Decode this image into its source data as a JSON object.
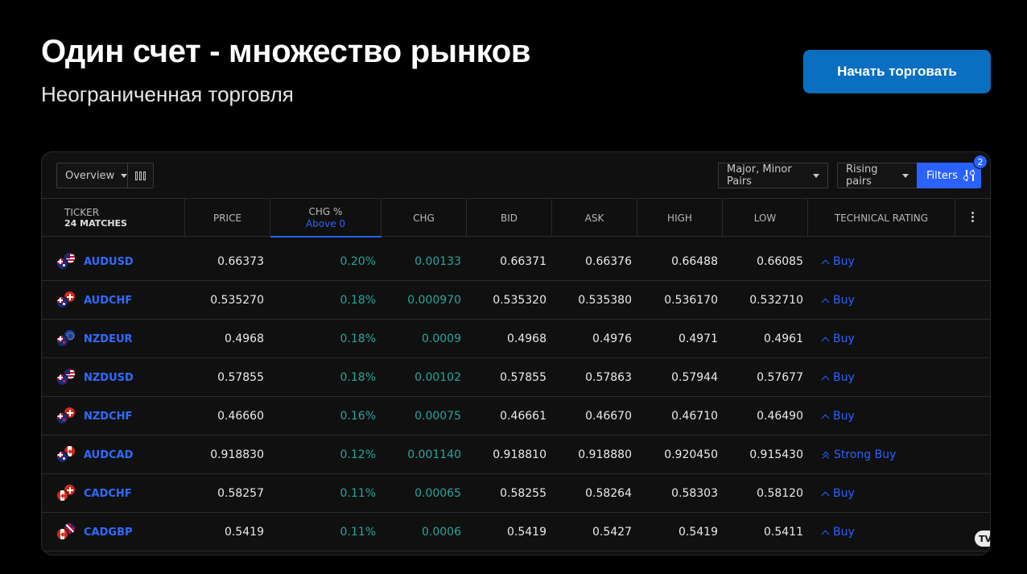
{
  "hero": {
    "title": "Один счет - множество рынков",
    "subtitle": "Неограниченная торговля",
    "cta_label": "Начать торговать"
  },
  "toolbar": {
    "view_select": "Overview",
    "pairs_select": "Major, Minor Pairs",
    "preset_select": "Rising pairs",
    "filters_label": "Filters",
    "filters_count": "2"
  },
  "table": {
    "headers": {
      "ticker": "TICKER",
      "matches": "24 MATCHES",
      "price": "PRICE",
      "chg_pct": "CHG %",
      "chg_pct_sub": "Above 0",
      "chg": "CHG",
      "bid": "BID",
      "ask": "ASK",
      "high": "HIGH",
      "low": "LOW",
      "rating": "TECHNICAL RATING"
    },
    "rows": [
      {
        "symbol": "AUDUSD",
        "flags": [
          "au",
          "us"
        ],
        "price": "0.66373",
        "chg_pct": "0.20%",
        "chg": "0.00133",
        "bid": "0.66371",
        "ask": "0.66376",
        "high": "0.66488",
        "low": "0.66085",
        "rating": "Buy",
        "strong": false
      },
      {
        "symbol": "AUDCHF",
        "flags": [
          "au",
          "ch"
        ],
        "price": "0.535270",
        "chg_pct": "0.18%",
        "chg": "0.000970",
        "bid": "0.535320",
        "ask": "0.535380",
        "high": "0.536170",
        "low": "0.532710",
        "rating": "Buy",
        "strong": false
      },
      {
        "symbol": "NZDEUR",
        "flags": [
          "nz",
          "eu"
        ],
        "price": "0.4968",
        "chg_pct": "0.18%",
        "chg": "0.0009",
        "bid": "0.4968",
        "ask": "0.4976",
        "high": "0.4971",
        "low": "0.4961",
        "rating": "Buy",
        "strong": false
      },
      {
        "symbol": "NZDUSD",
        "flags": [
          "nz",
          "us"
        ],
        "price": "0.57855",
        "chg_pct": "0.18%",
        "chg": "0.00102",
        "bid": "0.57855",
        "ask": "0.57863",
        "high": "0.57944",
        "low": "0.57677",
        "rating": "Buy",
        "strong": false
      },
      {
        "symbol": "NZDCHF",
        "flags": [
          "nz",
          "ch"
        ],
        "price": "0.46660",
        "chg_pct": "0.16%",
        "chg": "0.00075",
        "bid": "0.46661",
        "ask": "0.46670",
        "high": "0.46710",
        "low": "0.46490",
        "rating": "Buy",
        "strong": false
      },
      {
        "symbol": "AUDCAD",
        "flags": [
          "au",
          "ca"
        ],
        "price": "0.918830",
        "chg_pct": "0.12%",
        "chg": "0.001140",
        "bid": "0.918810",
        "ask": "0.918880",
        "high": "0.920450",
        "low": "0.915430",
        "rating": "Strong Buy",
        "strong": true
      },
      {
        "symbol": "CADCHF",
        "flags": [
          "ca",
          "ch"
        ],
        "price": "0.58257",
        "chg_pct": "0.11%",
        "chg": "0.00065",
        "bid": "0.58255",
        "ask": "0.58264",
        "high": "0.58303",
        "low": "0.58120",
        "rating": "Buy",
        "strong": false
      },
      {
        "symbol": "CADGBP",
        "flags": [
          "ca",
          "gb"
        ],
        "price": "0.5419",
        "chg_pct": "0.11%",
        "chg": "0.0006",
        "bid": "0.5419",
        "ask": "0.5427",
        "high": "0.5419",
        "low": "0.5411",
        "rating": "Buy",
        "strong": false
      }
    ]
  },
  "watermark": "TV",
  "colors": {
    "accent": "#2962ff",
    "cta": "#0a6fc0",
    "positive": "#26a69a"
  }
}
